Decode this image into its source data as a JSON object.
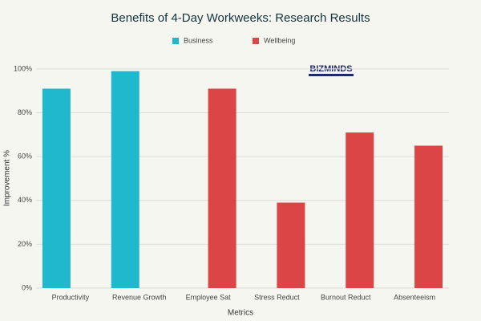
{
  "chart_data": {
    "type": "bar",
    "title": "Benefits of 4-Day Workweeks: Research Results",
    "categories": [
      "Productivity",
      "Revenue Growth",
      "Employee Sat",
      "Stress Reduct",
      "Burnout Reduct",
      "Absenteeism"
    ],
    "series": [
      {
        "name": "Business",
        "color": "#1fb8cd",
        "values": [
          91,
          99,
          0,
          0,
          0,
          0
        ]
      },
      {
        "name": "Wellbeing",
        "color": "#db4545",
        "values": [
          0,
          0,
          91,
          39,
          71,
          65
        ]
      }
    ],
    "ylim": [
      0,
      104
    ],
    "yticks": [
      {
        "value": 0,
        "label": "0%"
      },
      {
        "value": 20,
        "label": "20%"
      },
      {
        "value": 40,
        "label": "40%"
      },
      {
        "value": 60,
        "label": "60%"
      },
      {
        "value": 80,
        "label": "80%"
      },
      {
        "value": 100,
        "label": "100%"
      }
    ],
    "xlabel": "Metrics",
    "ylabel": "Improvement %",
    "grid": true,
    "watermark": "BIZMINDS"
  }
}
